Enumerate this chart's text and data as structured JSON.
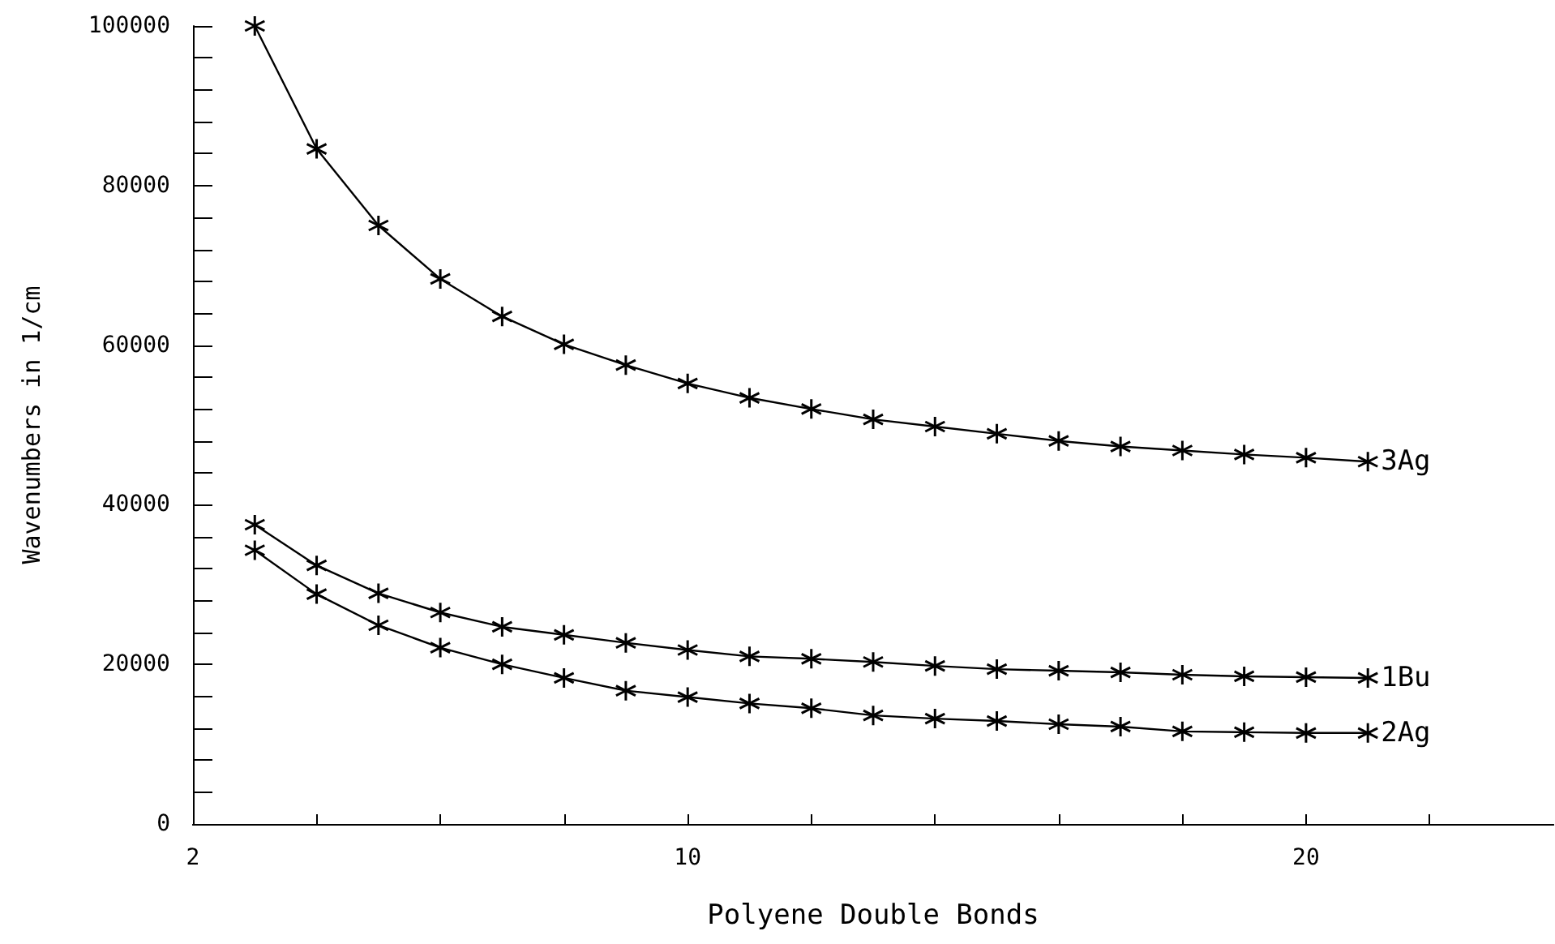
{
  "chart_data": {
    "type": "line",
    "xlabel": "Polyene Double Bonds",
    "ylabel": "Wavenumbers in 1/cm",
    "x": [
      3,
      4,
      5,
      6,
      7,
      8,
      9,
      10,
      11,
      12,
      13,
      14,
      15,
      16,
      17,
      18,
      19,
      20,
      21
    ],
    "series": [
      {
        "name": "3Ag",
        "color": "#000000",
        "values": [
          100000,
          84600,
          75000,
          68300,
          63600,
          60100,
          57500,
          55200,
          53400,
          52000,
          50700,
          49800,
          48900,
          48000,
          47300,
          46800,
          46300,
          45900,
          45400
        ]
      },
      {
        "name": "1Bu",
        "color": "#000000",
        "values": [
          37500,
          32400,
          28900,
          26500,
          24700,
          23700,
          22700,
          21800,
          21000,
          20700,
          20300,
          19800,
          19400,
          19200,
          19000,
          18700,
          18500,
          18400,
          18300
        ]
      },
      {
        "name": "2Ag",
        "color": "#000000",
        "values": [
          34300,
          28800,
          24900,
          22100,
          20000,
          18300,
          16700,
          15900,
          15100,
          14500,
          13600,
          13200,
          12900,
          12500,
          12200,
          11600,
          11500,
          11400,
          11400
        ]
      }
    ],
    "xlim": [
      2,
      24
    ],
    "xticks": [
      2,
      {
        "value": 4,
        "label": null
      },
      {
        "value": 6,
        "label": null
      },
      {
        "value": 8,
        "label": null
      },
      10,
      {
        "value": 12,
        "label": null
      },
      {
        "value": 14,
        "label": null
      },
      {
        "value": 16,
        "label": null
      },
      {
        "value": 18,
        "label": null
      },
      20,
      {
        "value": 22,
        "label": null
      }
    ],
    "ylim": [
      0,
      100000
    ],
    "yticks": [
      0,
      {
        "value": 4000,
        "label": null
      },
      {
        "value": 8000,
        "label": null
      },
      {
        "value": 12000,
        "label": null
      },
      {
        "value": 16000,
        "label": null
      },
      20000,
      {
        "value": 24000,
        "label": null
      },
      {
        "value": 28000,
        "label": null
      },
      {
        "value": 32000,
        "label": null
      },
      {
        "value": 36000,
        "label": null
      },
      40000,
      {
        "value": 44000,
        "label": null
      },
      {
        "value": 48000,
        "label": null
      },
      {
        "value": 52000,
        "label": null
      },
      {
        "value": 56000,
        "label": null
      },
      60000,
      {
        "value": 64000,
        "label": null
      },
      {
        "value": 68000,
        "label": null
      },
      {
        "value": 72000,
        "label": null
      },
      {
        "value": 76000,
        "label": null
      },
      80000,
      {
        "value": 84000,
        "label": null
      },
      {
        "value": 88000,
        "label": null
      },
      {
        "value": 92000,
        "label": null
      },
      {
        "value": 96000,
        "label": null
      },
      100000
    ],
    "marker": "cross",
    "line_style": "solid",
    "grid": false,
    "legend": false
  }
}
